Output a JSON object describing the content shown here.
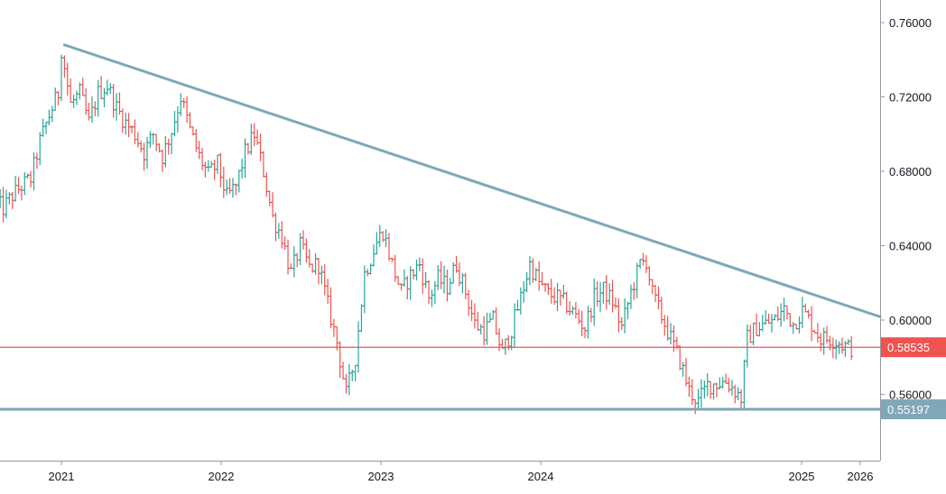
{
  "chart_data": {
    "type": "candlestick",
    "interval": "weekly",
    "x_axis": {
      "tick_labels": [
        "2021",
        "2022",
        "2023",
        "2024",
        "2025",
        "2026"
      ]
    },
    "y_axis": {
      "position": "right",
      "range": [
        0.532,
        0.77
      ],
      "tick_labels": [
        "0.76000",
        "0.72000",
        "0.68000",
        "0.64000",
        "0.60000",
        "0.56000"
      ],
      "tick_values": [
        0.76,
        0.72,
        0.68,
        0.64,
        0.6,
        0.56
      ]
    },
    "grid": false,
    "colors": {
      "up": "#26a69a",
      "down": "#ef5350",
      "trendline": "#7fa7b6",
      "support": "#7fa7b6",
      "resistance_level": "#ef5350",
      "axis_line": "#9598a1"
    },
    "trendline": {
      "start": {
        "date": "2021-01-08",
        "price": 0.748
      },
      "end": {
        "date": "2026-06-01",
        "price": 0.5935
      }
    },
    "horizontal_levels": [
      {
        "price": 0.58535,
        "label": "0.58535",
        "color": "#ef5350"
      },
      {
        "price": 0.55197,
        "label": "0.55197",
        "color": "#7fa7b6"
      }
    ],
    "price_path": [
      [
        "2020-08-07",
        0.664
      ],
      [
        "2020-08-28",
        0.66
      ],
      [
        "2020-09-18",
        0.667
      ],
      [
        "2020-10-09",
        0.672
      ],
      [
        "2020-10-30",
        0.676
      ],
      [
        "2020-11-20",
        0.696
      ],
      [
        "2020-12-11",
        0.71
      ],
      [
        "2021-01-01",
        0.722
      ],
      [
        "2021-01-08",
        0.746
      ],
      [
        "2021-01-29",
        0.716
      ],
      [
        "2021-02-19",
        0.722
      ],
      [
        "2021-03-12",
        0.706
      ],
      [
        "2021-04-02",
        0.722
      ],
      [
        "2021-04-23",
        0.726
      ],
      [
        "2021-05-14",
        0.714
      ],
      [
        "2021-06-04",
        0.706
      ],
      [
        "2021-06-25",
        0.7
      ],
      [
        "2021-07-16",
        0.69
      ],
      [
        "2021-08-06",
        0.7
      ],
      [
        "2021-08-27",
        0.688
      ],
      [
        "2021-09-17",
        0.702
      ],
      [
        "2021-10-08",
        0.72
      ],
      [
        "2021-10-29",
        0.702
      ],
      [
        "2021-11-19",
        0.688
      ],
      [
        "2021-12-10",
        0.678
      ],
      [
        "2021-12-31",
        0.684
      ],
      [
        "2022-01-21",
        0.666
      ],
      [
        "2022-02-11",
        0.672
      ],
      [
        "2022-03-04",
        0.69
      ],
      [
        "2022-03-25",
        0.7
      ],
      [
        "2022-04-15",
        0.68
      ],
      [
        "2022-05-06",
        0.655
      ],
      [
        "2022-05-27",
        0.645
      ],
      [
        "2022-06-17",
        0.625
      ],
      [
        "2022-07-08",
        0.64
      ],
      [
        "2022-07-29",
        0.628
      ],
      [
        "2022-08-19",
        0.63
      ],
      [
        "2022-09-09",
        0.608
      ],
      [
        "2022-09-30",
        0.588
      ],
      [
        "2022-10-21",
        0.56
      ],
      [
        "2022-11-11",
        0.58
      ],
      [
        "2022-12-02",
        0.625
      ],
      [
        "2022-12-30",
        0.642
      ],
      [
        "2023-01-13",
        0.648
      ],
      [
        "2023-02-03",
        0.63
      ],
      [
        "2023-02-24",
        0.615
      ],
      [
        "2023-03-17",
        0.624
      ],
      [
        "2023-04-07",
        0.63
      ],
      [
        "2023-04-28",
        0.612
      ],
      [
        "2023-05-19",
        0.622
      ],
      [
        "2023-06-09",
        0.618
      ],
      [
        "2023-06-30",
        0.63
      ],
      [
        "2023-07-21",
        0.615
      ],
      [
        "2023-08-11",
        0.598
      ],
      [
        "2023-09-01",
        0.594
      ],
      [
        "2023-09-22",
        0.6
      ],
      [
        "2023-10-13",
        0.582
      ],
      [
        "2023-11-03",
        0.595
      ],
      [
        "2023-11-24",
        0.612
      ],
      [
        "2023-12-15",
        0.63
      ],
      [
        "2024-01-05",
        0.62
      ],
      [
        "2024-01-26",
        0.614
      ],
      [
        "2024-02-16",
        0.612
      ],
      [
        "2024-03-08",
        0.608
      ],
      [
        "2024-03-29",
        0.602
      ],
      [
        "2024-04-19",
        0.596
      ],
      [
        "2024-05-10",
        0.612
      ],
      [
        "2024-05-31",
        0.616
      ],
      [
        "2024-06-21",
        0.61
      ],
      [
        "2024-07-12",
        0.596
      ],
      [
        "2024-08-02",
        0.615
      ],
      [
        "2024-08-23",
        0.63
      ],
      [
        "2024-09-06",
        0.632
      ],
      [
        "2024-09-20",
        0.614
      ],
      [
        "2024-10-11",
        0.602
      ],
      [
        "2024-11-01",
        0.59
      ],
      [
        "2024-11-22",
        0.578
      ],
      [
        "2024-12-13",
        0.562
      ],
      [
        "2025-01-03",
        0.556
      ],
      [
        "2025-01-24",
        0.565
      ],
      [
        "2025-02-14",
        0.566
      ],
      [
        "2025-03-07",
        0.567
      ],
      [
        "2025-03-28",
        0.562
      ],
      [
        "2025-04-11",
        0.558
      ],
      [
        "2025-04-25",
        0.59
      ],
      [
        "2025-05-16",
        0.596
      ],
      [
        "2025-06-06",
        0.598
      ],
      [
        "2025-06-27",
        0.6
      ],
      [
        "2025-07-18",
        0.606
      ],
      [
        "2025-08-08",
        0.598
      ],
      [
        "2025-08-29",
        0.605
      ],
      [
        "2025-09-19",
        0.598
      ],
      [
        "2025-10-10",
        0.59
      ],
      [
        "2025-10-31",
        0.59
      ],
      [
        "2025-11-21",
        0.588
      ],
      [
        "2025-12-12",
        0.585
      ]
    ]
  }
}
